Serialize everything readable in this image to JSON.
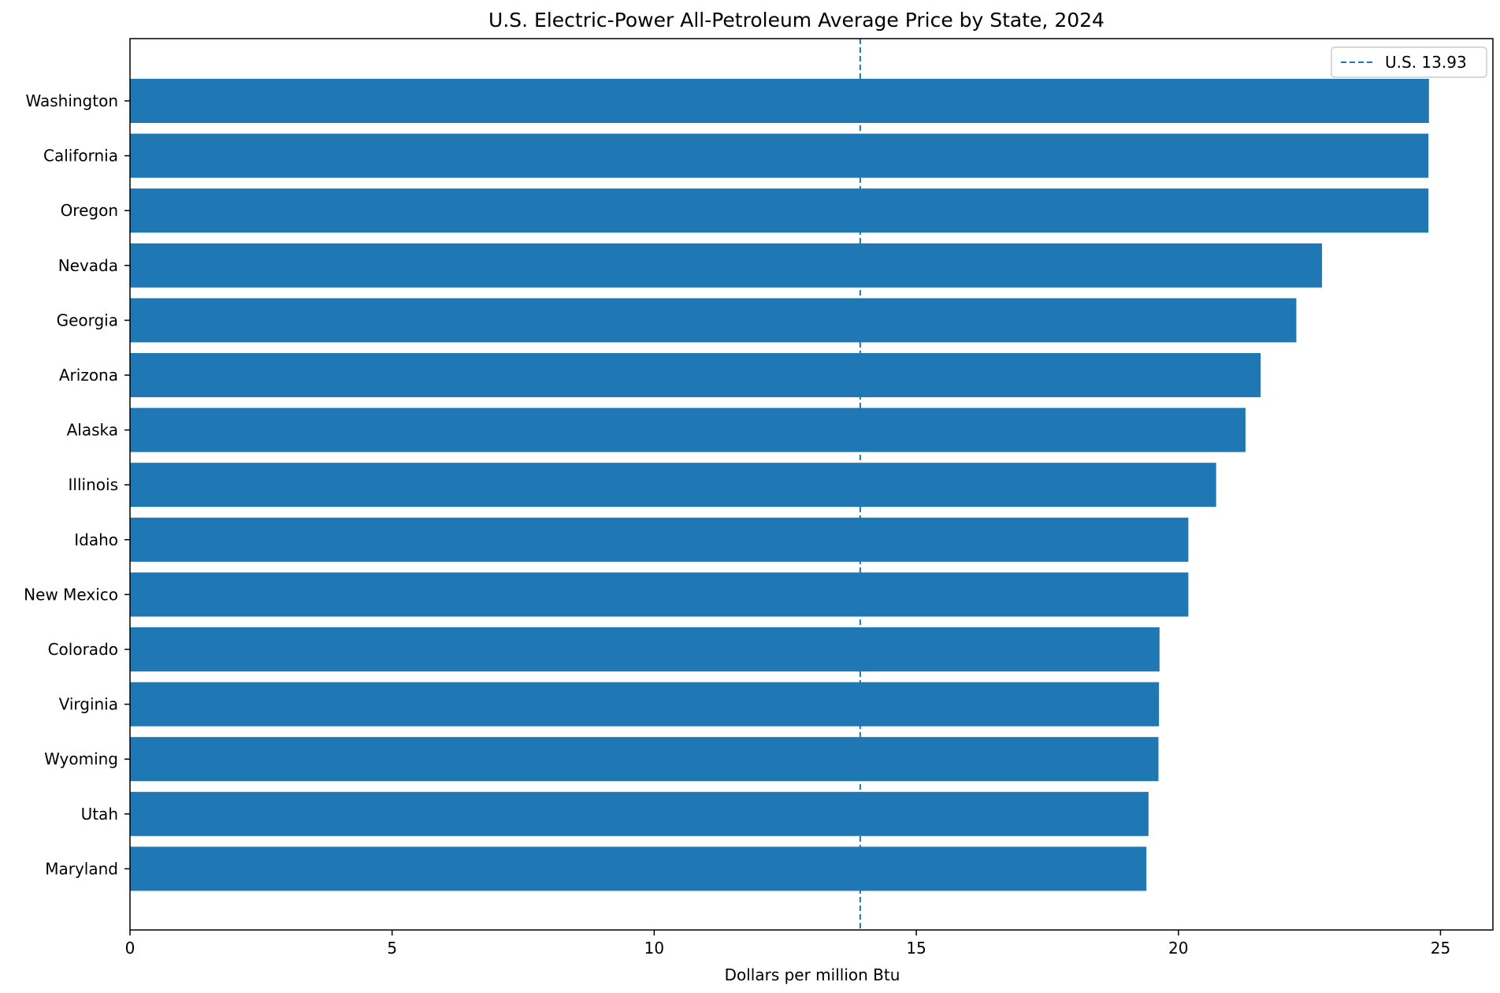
{
  "chart_data": {
    "type": "bar",
    "orientation": "horizontal",
    "title": "U.S. Electric-Power All-Petroleum Average Price by State, 2024",
    "xlabel": "Dollars per million Btu",
    "ylabel": "",
    "xlim": [
      0,
      26
    ],
    "x_ticks": [
      0,
      5,
      10,
      15,
      20,
      25
    ],
    "grid": false,
    "categories": [
      "Washington",
      "California",
      "Oregon",
      "Nevada",
      "Georgia",
      "Arizona",
      "Alaska",
      "Illinois",
      "Idaho",
      "New Mexico",
      "Colorado",
      "Virginia",
      "Wyoming",
      "Utah",
      "Maryland"
    ],
    "values": [
      24.78,
      24.77,
      24.77,
      22.74,
      22.25,
      21.57,
      21.28,
      20.72,
      20.19,
      20.19,
      19.64,
      19.63,
      19.62,
      19.43,
      19.39
    ],
    "bar_color": "#1f77b4",
    "reference_line": {
      "value": 13.93,
      "label": "U.S. 13.93",
      "color": "#1f77b4",
      "style": "dashed"
    },
    "legend": {
      "position": "top-right",
      "entries": [
        "U.S. 13.93"
      ]
    }
  }
}
